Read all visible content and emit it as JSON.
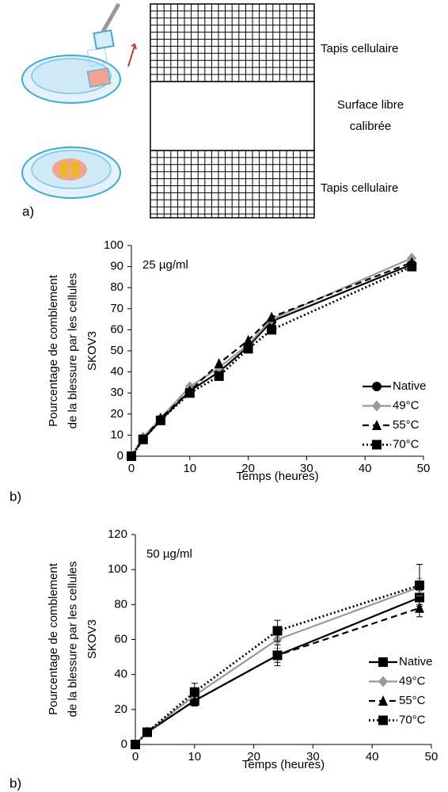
{
  "panel_a": {
    "panel_label": "a)",
    "labels": [
      "Tapis cellulaire",
      "Surface libre",
      "calibrée",
      "Tapis cellulaire"
    ]
  },
  "chart_data": [
    {
      "type": "line",
      "panel_label": "b)",
      "annotation": "25 µg/ml",
      "y_label": [
        "Pourcentage de comblement",
        "de la blessure par les cellules",
        "SKOV3"
      ],
      "x_label": "Temps (heures)",
      "x": [
        0,
        2,
        5,
        10,
        15,
        20,
        24,
        48
      ],
      "xlim": [
        0,
        50
      ],
      "xticks": [
        0,
        10,
        20,
        30,
        40,
        50
      ],
      "ylim": [
        0,
        100
      ],
      "yticks": [
        0,
        10,
        20,
        30,
        40,
        50,
        60,
        70,
        80,
        90,
        100
      ],
      "legend": "lower right",
      "series": [
        {
          "name": "Native",
          "color": "#000000",
          "marker": "circle",
          "dash": "solid",
          "values": [
            0,
            8,
            17,
            31,
            40,
            52,
            64,
            91
          ]
        },
        {
          "name": "49°C",
          "color": "#999999",
          "marker": "diamond",
          "dash": "solid",
          "values": [
            0,
            9,
            18,
            33,
            42,
            53,
            65,
            94
          ]
        },
        {
          "name": "55°C",
          "color": "#000000",
          "marker": "triangle",
          "dash": "dashed",
          "values": [
            0,
            8,
            18,
            31,
            44,
            55,
            66,
            92
          ]
        },
        {
          "name": "70°C",
          "color": "#000000",
          "marker": "square",
          "dash": "dotted",
          "values": [
            0,
            8,
            17,
            30,
            38,
            51,
            60,
            90
          ]
        }
      ]
    },
    {
      "type": "line",
      "panel_label": "b)",
      "annotation": "50 µg/ml",
      "y_label": [
        "Pourcentage de comblement",
        "de la blessure par les cellules",
        "SKOV3"
      ],
      "x_label": "Temps (heures)",
      "x": [
        0,
        2,
        10,
        24,
        48
      ],
      "xlim": [
        0,
        50
      ],
      "xticks": [
        0,
        10,
        20,
        30,
        40,
        50
      ],
      "ylim": [
        0,
        120
      ],
      "yticks": [
        0,
        20,
        40,
        60,
        80,
        100,
        120
      ],
      "legend": "lower right",
      "series": [
        {
          "name": "Native",
          "color": "#000000",
          "marker": "square",
          "dash": "solid",
          "values": [
            0,
            7,
            25,
            51,
            84
          ],
          "errors": [
            0,
            1,
            3,
            4,
            4
          ]
        },
        {
          "name": "49°C",
          "color": "#999999",
          "marker": "diamond",
          "dash": "solid",
          "values": [
            0,
            7,
            28,
            60,
            90
          ],
          "errors": [
            0,
            1,
            3,
            5,
            5
          ]
        },
        {
          "name": "55°C",
          "color": "#000000",
          "marker": "triangle",
          "dash": "dashed",
          "values": [
            0,
            7,
            25,
            51,
            78
          ],
          "errors": [
            0,
            1,
            3,
            6,
            5
          ]
        },
        {
          "name": "70°C",
          "color": "#000000",
          "marker": "square",
          "dash": "dotted",
          "values": [
            0,
            7,
            30,
            65,
            91
          ],
          "errors": [
            0,
            1,
            5,
            6,
            12
          ]
        }
      ]
    }
  ]
}
